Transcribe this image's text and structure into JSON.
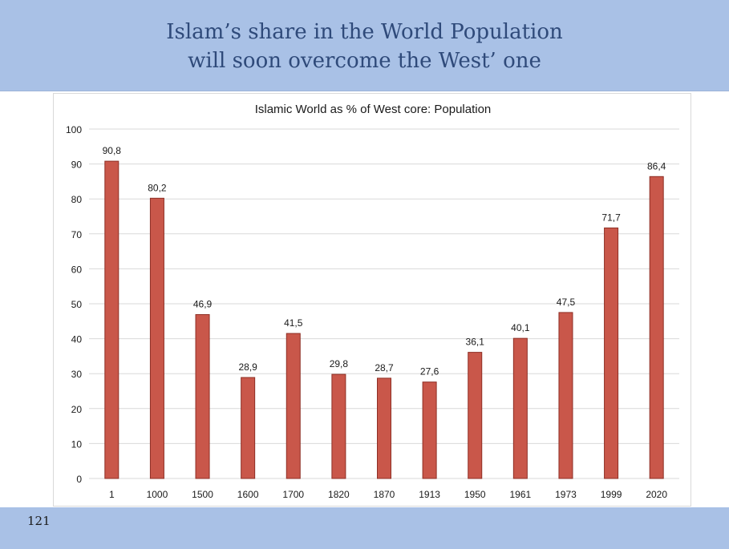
{
  "slide": {
    "title_line1": "Islam’s share in the World Population",
    "title_line2": "will soon overcome the West’ one",
    "page_number": "121"
  },
  "colors": {
    "header_band": "#a9c1e6",
    "title_text": "#2f4a7a",
    "bar_fill": "#c9574a",
    "bar_stroke": "#8e2f25",
    "gridline": "#d9d9d9"
  },
  "chart_data": {
    "type": "bar",
    "title": "Islamic World as % of West core: Population",
    "categories": [
      "1",
      "1000",
      "1500",
      "1600",
      "1700",
      "1820",
      "1870",
      "1913",
      "1950",
      "1961",
      "1973",
      "1999",
      "2020"
    ],
    "values": [
      90.8,
      80.2,
      46.9,
      28.9,
      41.5,
      29.8,
      28.7,
      27.6,
      36.1,
      40.1,
      47.5,
      71.7,
      86.4
    ],
    "data_labels": [
      "90,8",
      "80,2",
      "46,9",
      "28,9",
      "41,5",
      "29,8",
      "28,7",
      "27,6",
      "36,1",
      "40,1",
      "47,5",
      "71,7",
      "86,4"
    ],
    "y_ticks": [
      "0",
      "10",
      "20",
      "30",
      "40",
      "50",
      "60",
      "70",
      "80",
      "90",
      "100"
    ],
    "ylim": [
      0,
      100
    ],
    "xlabel": "",
    "ylabel": "",
    "grid": true,
    "legend": "none"
  }
}
